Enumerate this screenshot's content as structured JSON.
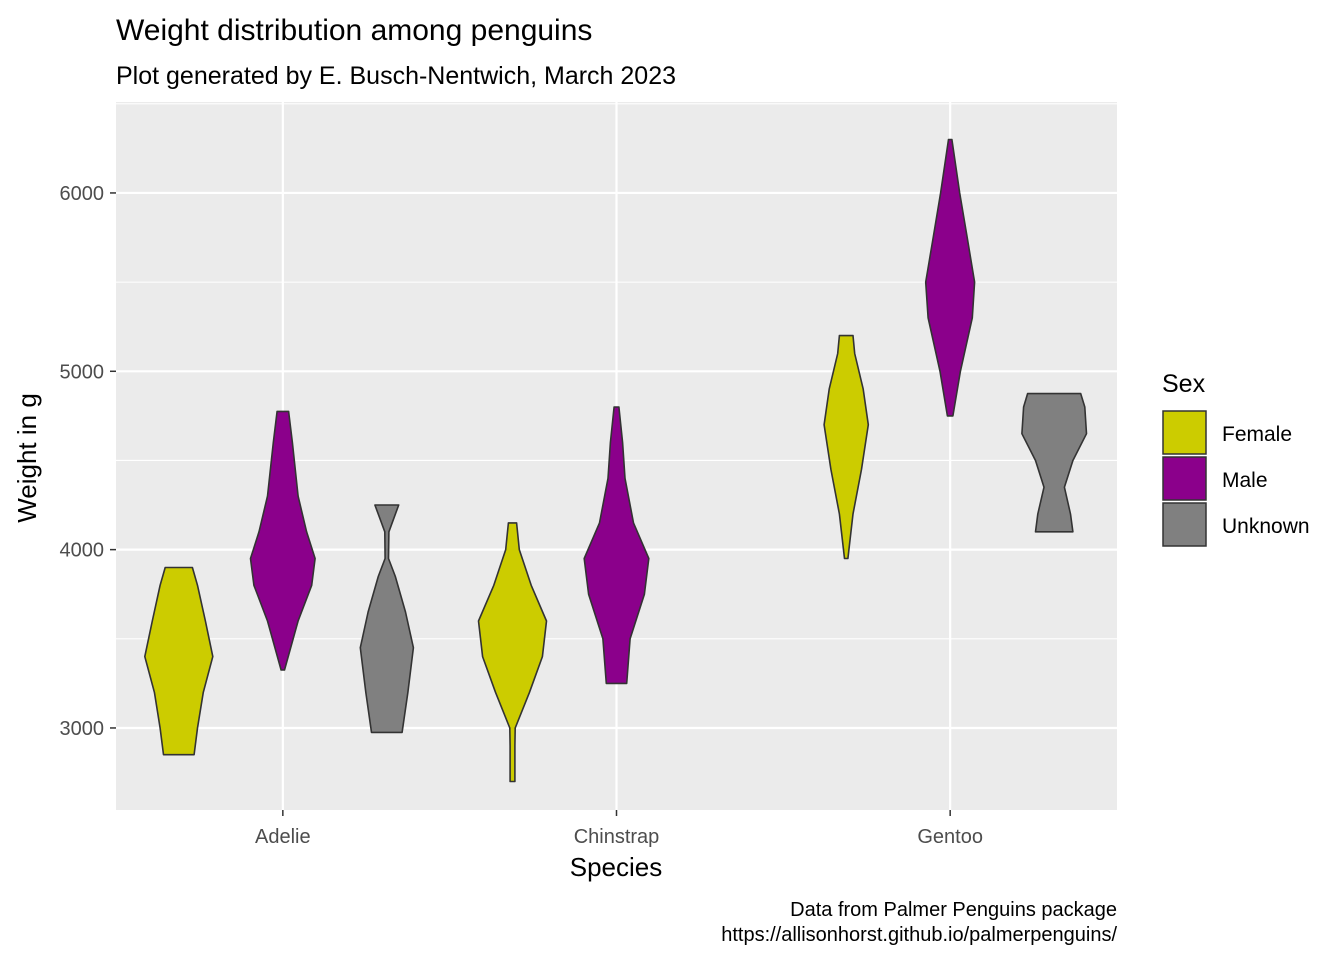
{
  "chart_data": {
    "type": "violin",
    "title": "Weight distribution among penguins",
    "subtitle": "Plot generated by E. Busch-Nentwich, March 2023",
    "xlabel": "Species",
    "ylabel": "Weight in g",
    "caption": [
      "Data from Palmer Penguins package",
      "https://allisonhorst.github.io/palmerpenguins/"
    ],
    "categories": [
      "Adelie",
      "Chinstrap",
      "Gentoo"
    ],
    "ylim": [
      2540,
      6510
    ],
    "yticks": [
      3000,
      4000,
      5000,
      6000
    ],
    "grid": true,
    "legend": {
      "title": "Sex",
      "position": "right",
      "entries": [
        {
          "label": "Female",
          "color": "#CCCC00"
        },
        {
          "label": "Male",
          "color": "#8B008B"
        },
        {
          "label": "Unknown",
          "color": "#808080"
        }
      ]
    },
    "series": [
      {
        "category": "Adelie",
        "group": "Female",
        "color": "#CCCC00",
        "profile": [
          [
            2850,
            0.45
          ],
          [
            3000,
            0.55
          ],
          [
            3200,
            0.72
          ],
          [
            3400,
            1.0
          ],
          [
            3600,
            0.78
          ],
          [
            3800,
            0.55
          ],
          [
            3900,
            0.4
          ]
        ]
      },
      {
        "category": "Adelie",
        "group": "Male",
        "color": "#8B008B",
        "profile": [
          [
            3325,
            0.05
          ],
          [
            3600,
            0.45
          ],
          [
            3800,
            0.85
          ],
          [
            3950,
            0.95
          ],
          [
            4100,
            0.7
          ],
          [
            4300,
            0.45
          ],
          [
            4600,
            0.28
          ],
          [
            4775,
            0.17
          ]
        ]
      },
      {
        "category": "Adelie",
        "group": "Unknown",
        "color": "#808080",
        "profile": [
          [
            2975,
            0.45
          ],
          [
            3200,
            0.62
          ],
          [
            3450,
            0.78
          ],
          [
            3650,
            0.55
          ],
          [
            3850,
            0.25
          ],
          [
            3950,
            0.05
          ],
          [
            4100,
            0.06
          ],
          [
            4250,
            0.35
          ]
        ]
      },
      {
        "category": "Chinstrap",
        "group": "Female",
        "color": "#CCCC00",
        "profile": [
          [
            2700,
            0.07
          ],
          [
            2900,
            0.07
          ],
          [
            3000,
            0.08
          ],
          [
            3200,
            0.5
          ],
          [
            3400,
            0.88
          ],
          [
            3600,
            1.0
          ],
          [
            3800,
            0.55
          ],
          [
            4000,
            0.2
          ],
          [
            4150,
            0.12
          ]
        ]
      },
      {
        "category": "Chinstrap",
        "group": "Male",
        "color": "#8B008B",
        "profile": [
          [
            3250,
            0.3
          ],
          [
            3500,
            0.4
          ],
          [
            3750,
            0.82
          ],
          [
            3950,
            0.95
          ],
          [
            4150,
            0.5
          ],
          [
            4400,
            0.25
          ],
          [
            4600,
            0.18
          ],
          [
            4800,
            0.07
          ]
        ]
      },
      {
        "category": "Gentoo",
        "group": "Female",
        "color": "#CCCC00",
        "profile": [
          [
            3950,
            0.05
          ],
          [
            4200,
            0.2
          ],
          [
            4450,
            0.45
          ],
          [
            4700,
            0.65
          ],
          [
            4900,
            0.5
          ],
          [
            5100,
            0.25
          ],
          [
            5200,
            0.2
          ]
        ]
      },
      {
        "category": "Gentoo",
        "group": "Male",
        "color": "#8B008B",
        "profile": [
          [
            4750,
            0.08
          ],
          [
            5000,
            0.3
          ],
          [
            5300,
            0.65
          ],
          [
            5500,
            0.72
          ],
          [
            5750,
            0.5
          ],
          [
            6000,
            0.28
          ],
          [
            6300,
            0.05
          ]
        ]
      },
      {
        "category": "Gentoo",
        "group": "Unknown",
        "color": "#808080",
        "profile": [
          [
            4100,
            0.55
          ],
          [
            4200,
            0.48
          ],
          [
            4350,
            0.3
          ],
          [
            4500,
            0.55
          ],
          [
            4650,
            0.95
          ],
          [
            4800,
            0.9
          ],
          [
            4875,
            0.78
          ]
        ]
      }
    ]
  }
}
